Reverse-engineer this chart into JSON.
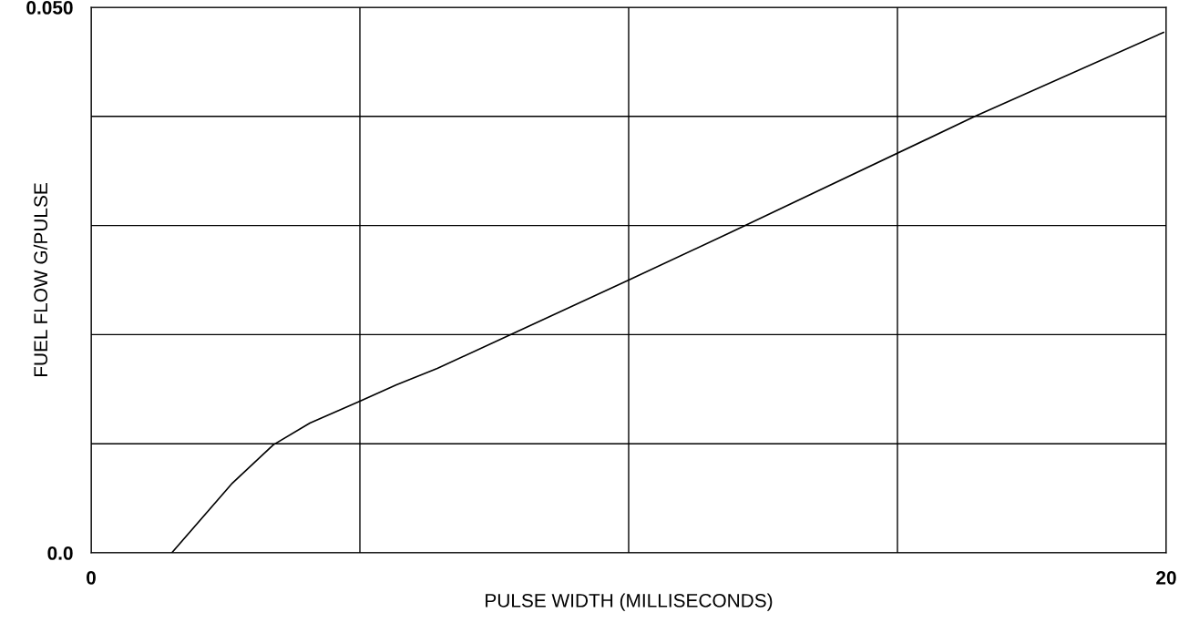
{
  "chart_data": {
    "type": "line",
    "xlabel": "PULSE WIDTH (MILLISECONDS)",
    "ylabel": "FUEL FLOW G/PULSE",
    "x": [
      1.5,
      2.63,
      3.39,
      4.07,
      5.0,
      5.68,
      6.44,
      7.8,
      10.0,
      12.17,
      16.44,
      19.95
    ],
    "series": [
      {
        "color": "#000000",
        "values": [
          0.0,
          0.0064,
          0.0099,
          0.0119,
          0.0139,
          0.0154,
          0.0169,
          0.02,
          0.025,
          0.03,
          0.04,
          0.0477
        ]
      }
    ],
    "xlim": [
      0,
      20
    ],
    "ylim": [
      0,
      0.05
    ],
    "xticks": [
      0,
      {
        "value": 5,
        "label": null
      },
      {
        "value": 10,
        "label": null
      },
      {
        "value": 15,
        "label": null
      },
      20
    ],
    "yticks": [
      {
        "value": 0,
        "label": "0.0"
      },
      {
        "value": 0.01,
        "label": null
      },
      {
        "value": 0.02,
        "label": null
      },
      {
        "value": 0.03,
        "label": null
      },
      {
        "value": 0.04,
        "label": null
      },
      {
        "value": 0.05,
        "label": "0.050"
      }
    ],
    "grid": true,
    "marker": "none",
    "line_style": "solid"
  }
}
